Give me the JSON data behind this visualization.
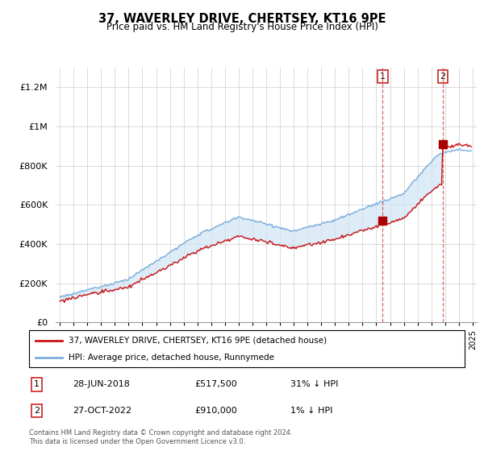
{
  "title": "37, WAVERLEY DRIVE, CHERTSEY, KT16 9PE",
  "subtitle": "Price paid vs. HM Land Registry's House Price Index (HPI)",
  "legend_line1": "37, WAVERLEY DRIVE, CHERTSEY, KT16 9PE (detached house)",
  "legend_line2": "HPI: Average price, detached house, Runnymede",
  "footnote": "Contains HM Land Registry data © Crown copyright and database right 2024.\nThis data is licensed under the Open Government Licence v3.0.",
  "annotation1_label": "1",
  "annotation1_date": "28-JUN-2018",
  "annotation1_price": "£517,500",
  "annotation1_hpi": "31% ↓ HPI",
  "annotation2_label": "2",
  "annotation2_date": "27-OCT-2022",
  "annotation2_price": "£910,000",
  "annotation2_hpi": "1% ↓ HPI",
  "hpi_color": "#7aaddc",
  "hpi_fill_color": "#d0e4f5",
  "price_color": "#cc1111",
  "marker_color": "#aa0000",
  "vline_color": "#cc4444",
  "ylim": [
    0,
    1300000
  ],
  "yticks": [
    0,
    200000,
    400000,
    600000,
    800000,
    1000000,
    1200000
  ],
  "ytick_labels": [
    "£0",
    "£200K",
    "£400K",
    "£600K",
    "£800K",
    "£1M",
    "£1.2M"
  ],
  "sale1_year": 2018.458,
  "sale1_price": 517500,
  "sale2_year": 2022.833,
  "sale2_price": 910000,
  "bg_color": "#f0f4fa"
}
